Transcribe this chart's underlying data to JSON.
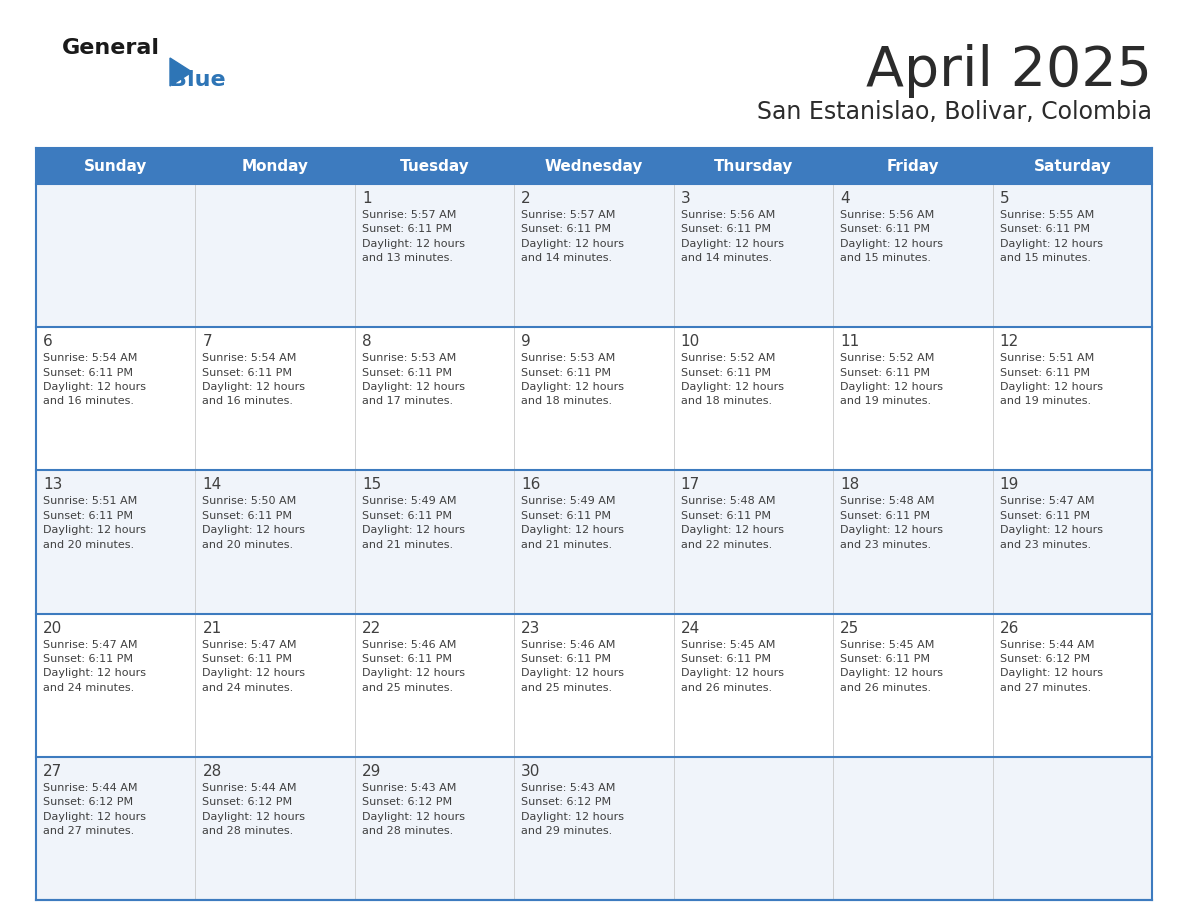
{
  "title": "April 2025",
  "subtitle": "San Estanislao, Bolivar, Colombia",
  "days_of_week": [
    "Sunday",
    "Monday",
    "Tuesday",
    "Wednesday",
    "Thursday",
    "Friday",
    "Saturday"
  ],
  "header_bg": "#3D7BBF",
  "header_text_color": "#FFFFFF",
  "row_bg_light": "#F0F4FA",
  "row_bg_white": "#FFFFFF",
  "cell_border_color": "#3D7BBF",
  "row_divider_color": "#3D7BBF",
  "text_color": "#404040",
  "title_color": "#2B2B2B",
  "subtitle_color": "#2B2B2B",
  "logo_general_color": "#1A1A1A",
  "logo_blue_color": "#2E75B6",
  "weeks": [
    [
      {
        "day": null,
        "info": null
      },
      {
        "day": null,
        "info": null
      },
      {
        "day": 1,
        "info": "Sunrise: 5:57 AM\nSunset: 6:11 PM\nDaylight: 12 hours\nand 13 minutes."
      },
      {
        "day": 2,
        "info": "Sunrise: 5:57 AM\nSunset: 6:11 PM\nDaylight: 12 hours\nand 14 minutes."
      },
      {
        "day": 3,
        "info": "Sunrise: 5:56 AM\nSunset: 6:11 PM\nDaylight: 12 hours\nand 14 minutes."
      },
      {
        "day": 4,
        "info": "Sunrise: 5:56 AM\nSunset: 6:11 PM\nDaylight: 12 hours\nand 15 minutes."
      },
      {
        "day": 5,
        "info": "Sunrise: 5:55 AM\nSunset: 6:11 PM\nDaylight: 12 hours\nand 15 minutes."
      }
    ],
    [
      {
        "day": 6,
        "info": "Sunrise: 5:54 AM\nSunset: 6:11 PM\nDaylight: 12 hours\nand 16 minutes."
      },
      {
        "day": 7,
        "info": "Sunrise: 5:54 AM\nSunset: 6:11 PM\nDaylight: 12 hours\nand 16 minutes."
      },
      {
        "day": 8,
        "info": "Sunrise: 5:53 AM\nSunset: 6:11 PM\nDaylight: 12 hours\nand 17 minutes."
      },
      {
        "day": 9,
        "info": "Sunrise: 5:53 AM\nSunset: 6:11 PM\nDaylight: 12 hours\nand 18 minutes."
      },
      {
        "day": 10,
        "info": "Sunrise: 5:52 AM\nSunset: 6:11 PM\nDaylight: 12 hours\nand 18 minutes."
      },
      {
        "day": 11,
        "info": "Sunrise: 5:52 AM\nSunset: 6:11 PM\nDaylight: 12 hours\nand 19 minutes."
      },
      {
        "day": 12,
        "info": "Sunrise: 5:51 AM\nSunset: 6:11 PM\nDaylight: 12 hours\nand 19 minutes."
      }
    ],
    [
      {
        "day": 13,
        "info": "Sunrise: 5:51 AM\nSunset: 6:11 PM\nDaylight: 12 hours\nand 20 minutes."
      },
      {
        "day": 14,
        "info": "Sunrise: 5:50 AM\nSunset: 6:11 PM\nDaylight: 12 hours\nand 20 minutes."
      },
      {
        "day": 15,
        "info": "Sunrise: 5:49 AM\nSunset: 6:11 PM\nDaylight: 12 hours\nand 21 minutes."
      },
      {
        "day": 16,
        "info": "Sunrise: 5:49 AM\nSunset: 6:11 PM\nDaylight: 12 hours\nand 21 minutes."
      },
      {
        "day": 17,
        "info": "Sunrise: 5:48 AM\nSunset: 6:11 PM\nDaylight: 12 hours\nand 22 minutes."
      },
      {
        "day": 18,
        "info": "Sunrise: 5:48 AM\nSunset: 6:11 PM\nDaylight: 12 hours\nand 23 minutes."
      },
      {
        "day": 19,
        "info": "Sunrise: 5:47 AM\nSunset: 6:11 PM\nDaylight: 12 hours\nand 23 minutes."
      }
    ],
    [
      {
        "day": 20,
        "info": "Sunrise: 5:47 AM\nSunset: 6:11 PM\nDaylight: 12 hours\nand 24 minutes."
      },
      {
        "day": 21,
        "info": "Sunrise: 5:47 AM\nSunset: 6:11 PM\nDaylight: 12 hours\nand 24 minutes."
      },
      {
        "day": 22,
        "info": "Sunrise: 5:46 AM\nSunset: 6:11 PM\nDaylight: 12 hours\nand 25 minutes."
      },
      {
        "day": 23,
        "info": "Sunrise: 5:46 AM\nSunset: 6:11 PM\nDaylight: 12 hours\nand 25 minutes."
      },
      {
        "day": 24,
        "info": "Sunrise: 5:45 AM\nSunset: 6:11 PM\nDaylight: 12 hours\nand 26 minutes."
      },
      {
        "day": 25,
        "info": "Sunrise: 5:45 AM\nSunset: 6:11 PM\nDaylight: 12 hours\nand 26 minutes."
      },
      {
        "day": 26,
        "info": "Sunrise: 5:44 AM\nSunset: 6:12 PM\nDaylight: 12 hours\nand 27 minutes."
      }
    ],
    [
      {
        "day": 27,
        "info": "Sunrise: 5:44 AM\nSunset: 6:12 PM\nDaylight: 12 hours\nand 27 minutes."
      },
      {
        "day": 28,
        "info": "Sunrise: 5:44 AM\nSunset: 6:12 PM\nDaylight: 12 hours\nand 28 minutes."
      },
      {
        "day": 29,
        "info": "Sunrise: 5:43 AM\nSunset: 6:12 PM\nDaylight: 12 hours\nand 28 minutes."
      },
      {
        "day": 30,
        "info": "Sunrise: 5:43 AM\nSunset: 6:12 PM\nDaylight: 12 hours\nand 29 minutes."
      },
      {
        "day": null,
        "info": null
      },
      {
        "day": null,
        "info": null
      },
      {
        "day": null,
        "info": null
      }
    ]
  ]
}
